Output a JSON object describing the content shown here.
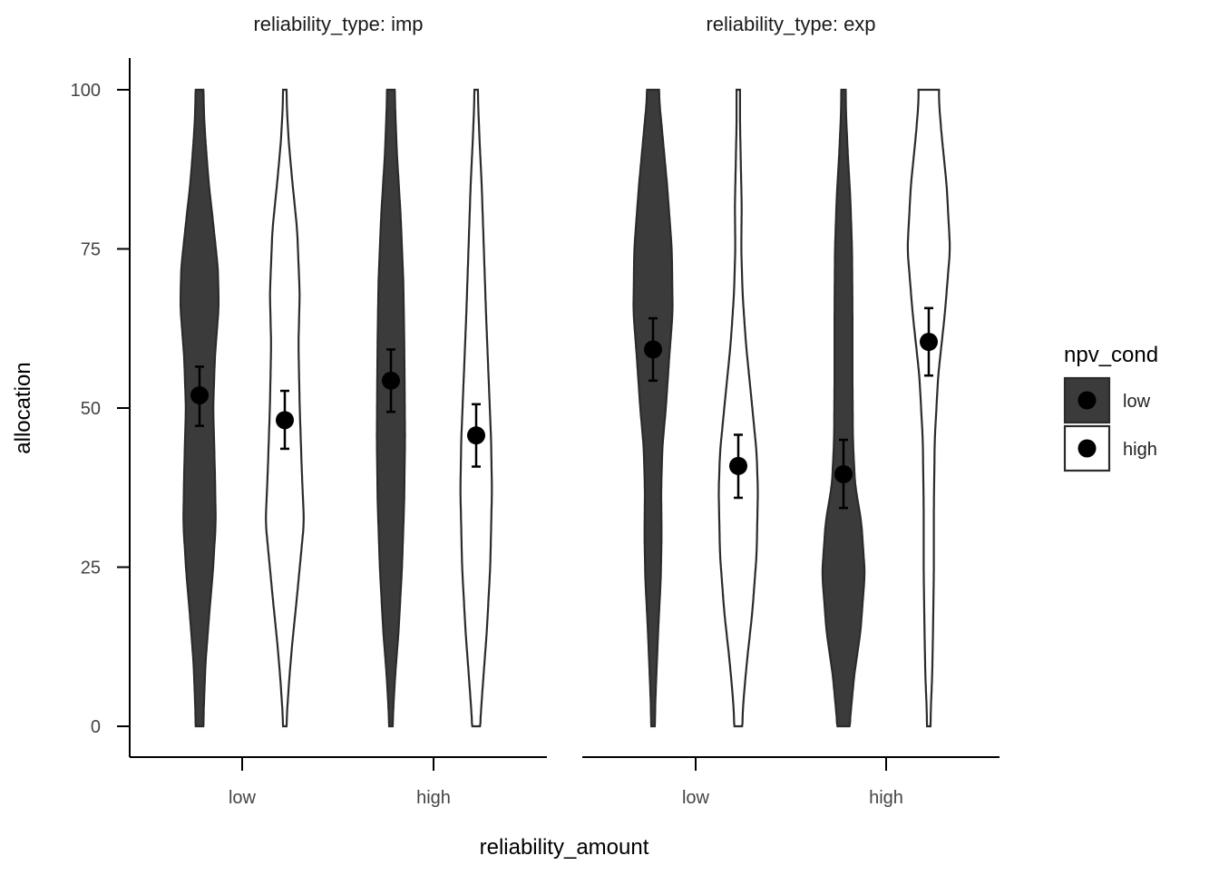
{
  "chart_data": {
    "type": "violin",
    "xlabel": "reliability_amount",
    "ylabel": "allocation",
    "ylim": [
      0,
      100
    ],
    "yticks": [
      0,
      25,
      50,
      75,
      100
    ],
    "categories": [
      "low",
      "high"
    ],
    "legend": {
      "title": "npv_cond",
      "position": "right",
      "entries": [
        {
          "label": "low",
          "fill": "#3b3b3b"
        },
        {
          "label": "high",
          "fill": "#ffffff"
        }
      ]
    },
    "colors": {
      "low": "#3b3b3b",
      "high": "#ffffff",
      "outline": "#2b2b2b",
      "point": "#000000"
    },
    "panels": [
      {
        "title": "reliability_type: imp",
        "groups": [
          {
            "reliability_amount": "low",
            "npv_cond": "low",
            "mean": 52,
            "ci": [
              47.2,
              56.5
            ],
            "density": [
              [
                0,
                0.09
              ],
              [
                3,
                0.1
              ],
              [
                10,
                0.14
              ],
              [
                17,
                0.22
              ],
              [
                25,
                0.32
              ],
              [
                32,
                0.38
              ],
              [
                40,
                0.36
              ],
              [
                50,
                0.32
              ],
              [
                58,
                0.36
              ],
              [
                66,
                0.45
              ],
              [
                72,
                0.43
              ],
              [
                79,
                0.32
              ],
              [
                85,
                0.22
              ],
              [
                90,
                0.16
              ],
              [
                95,
                0.11
              ],
              [
                100,
                0.09
              ]
            ]
          },
          {
            "reliability_amount": "low",
            "npv_cond": "high",
            "mean": 48.1,
            "ci": [
              43.6,
              52.7
            ],
            "density": [
              [
                0,
                0.04
              ],
              [
                2,
                0.05
              ],
              [
                7,
                0.1
              ],
              [
                12,
                0.16
              ],
              [
                20,
                0.28
              ],
              [
                32,
                0.45
              ],
              [
                40,
                0.4
              ],
              [
                50,
                0.35
              ],
              [
                60,
                0.32
              ],
              [
                68,
                0.35
              ],
              [
                78,
                0.29
              ],
              [
                86,
                0.17
              ],
              [
                92,
                0.09
              ],
              [
                97,
                0.05
              ],
              [
                100,
                0.04
              ]
            ]
          },
          {
            "reliability_amount": "high",
            "npv_cond": "low",
            "mean": 54.3,
            "ci": [
              49.4,
              59.2
            ],
            "density": [
              [
                0,
                0.04
              ],
              [
                2,
                0.05
              ],
              [
                8,
                0.1
              ],
              [
                15,
                0.18
              ],
              [
                25,
                0.26
              ],
              [
                35,
                0.31
              ],
              [
                45,
                0.33
              ],
              [
                55,
                0.32
              ],
              [
                62,
                0.31
              ],
              [
                70,
                0.29
              ],
              [
                80,
                0.23
              ],
              [
                90,
                0.14
              ],
              [
                97,
                0.1
              ],
              [
                100,
                0.09
              ]
            ]
          },
          {
            "reliability_amount": "high",
            "npv_cond": "high",
            "mean": 45.7,
            "ci": [
              40.8,
              50.6
            ],
            "density": [
              [
                0,
                0.09
              ],
              [
                5,
                0.14
              ],
              [
                15,
                0.25
              ],
              [
                25,
                0.33
              ],
              [
                37,
                0.37
              ],
              [
                45,
                0.35
              ],
              [
                55,
                0.29
              ],
              [
                65,
                0.23
              ],
              [
                75,
                0.18
              ],
              [
                85,
                0.13
              ],
              [
                92,
                0.08
              ],
              [
                97,
                0.05
              ],
              [
                100,
                0.04
              ]
            ]
          }
        ]
      },
      {
        "title": "reliability_type: exp",
        "groups": [
          {
            "reliability_amount": "low",
            "npv_cond": "low",
            "mean": 59.2,
            "ci": [
              54.3,
              64.1
            ],
            "density": [
              [
                0,
                0.04
              ],
              [
                5,
                0.06
              ],
              [
                15,
                0.12
              ],
              [
                23,
                0.18
              ],
              [
                30,
                0.2
              ],
              [
                37,
                0.19
              ],
              [
                44,
                0.22
              ],
              [
                50,
                0.3
              ],
              [
                58,
                0.38
              ],
              [
                65,
                0.46
              ],
              [
                75,
                0.44
              ],
              [
                85,
                0.33
              ],
              [
                93,
                0.22
              ],
              [
                98,
                0.15
              ],
              [
                100,
                0.14
              ]
            ]
          },
          {
            "reliability_amount": "low",
            "npv_cond": "high",
            "mean": 40.9,
            "ci": [
              35.9,
              45.8
            ],
            "density": [
              [
                0,
                0.09
              ],
              [
                4,
                0.12
              ],
              [
                10,
                0.2
              ],
              [
                18,
                0.33
              ],
              [
                27,
                0.43
              ],
              [
                37,
                0.46
              ],
              [
                43,
                0.43
              ],
              [
                52,
                0.3
              ],
              [
                60,
                0.18
              ],
              [
                68,
                0.1
              ],
              [
                75,
                0.07
              ],
              [
                82,
                0.08
              ],
              [
                88,
                0.06
              ],
              [
                95,
                0.04
              ],
              [
                100,
                0.04
              ]
            ]
          },
          {
            "reliability_amount": "high",
            "npv_cond": "low",
            "mean": 39.6,
            "ci": [
              34.3,
              45.0
            ],
            "density": [
              [
                0,
                0.14
              ],
              [
                8,
                0.25
              ],
              [
                15,
                0.4
              ],
              [
                24,
                0.5
              ],
              [
                32,
                0.42
              ],
              [
                38,
                0.27
              ],
              [
                45,
                0.22
              ],
              [
                55,
                0.21
              ],
              [
                65,
                0.21
              ],
              [
                75,
                0.2
              ],
              [
                83,
                0.16
              ],
              [
                90,
                0.1
              ],
              [
                96,
                0.06
              ],
              [
                100,
                0.05
              ]
            ]
          },
          {
            "reliability_amount": "high",
            "npv_cond": "high",
            "mean": 60.4,
            "ci": [
              55.1,
              65.7
            ],
            "density": [
              [
                0,
                0.04
              ],
              [
                3,
                0.05
              ],
              [
                8,
                0.08
              ],
              [
                15,
                0.1
              ],
              [
                25,
                0.12
              ],
              [
                35,
                0.12
              ],
              [
                45,
                0.14
              ],
              [
                55,
                0.22
              ],
              [
                65,
                0.38
              ],
              [
                75,
                0.5
              ],
              [
                85,
                0.42
              ],
              [
                93,
                0.3
              ],
              [
                98,
                0.24
              ],
              [
                100,
                0.24
              ]
            ]
          }
        ]
      }
    ]
  }
}
